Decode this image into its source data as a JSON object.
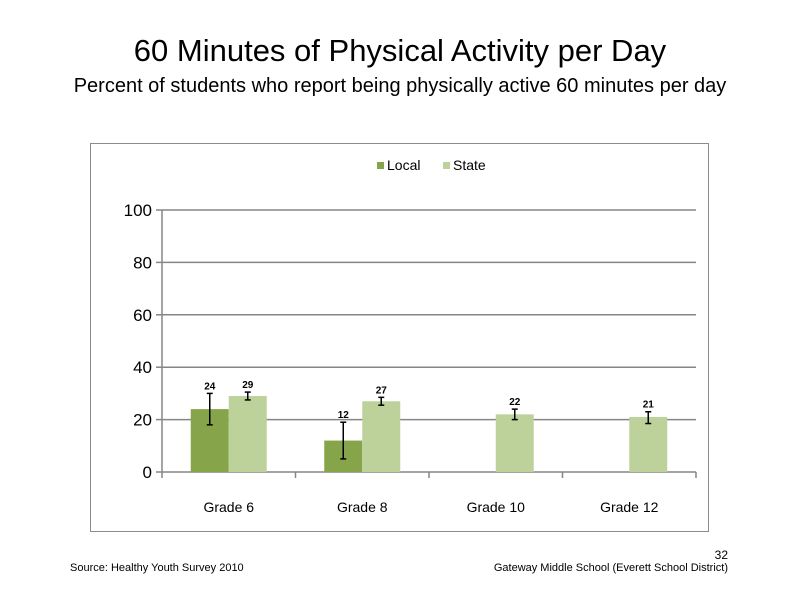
{
  "title": "60 Minutes of Physical Activity per Day",
  "subtitle": "Percent of students who report being physically active 60 minutes per day",
  "footer": {
    "source": "Source: Healthy Youth Survey 2010",
    "organization": "Gateway Middle School (Everett School District)",
    "page_number": "32"
  },
  "chart_data": {
    "type": "bar",
    "categories": [
      "Grade 6",
      "Grade 8",
      "Grade 10",
      "Grade 12"
    ],
    "ylim": [
      0,
      100
    ],
    "yticks": [
      0,
      20,
      40,
      60,
      80,
      100
    ],
    "grid": true,
    "legend_position": "top",
    "series": [
      {
        "name": "Local",
        "color": "#86a54a",
        "values": [
          24,
          12,
          null,
          null
        ],
        "error_low": [
          18,
          5,
          null,
          null
        ],
        "error_high": [
          30,
          19,
          null,
          null
        ]
      },
      {
        "name": "State",
        "color": "#bdd29b",
        "values": [
          29,
          27,
          22,
          21
        ],
        "error_low": [
          27.5,
          25.5,
          20,
          18.5
        ],
        "error_high": [
          30.5,
          28.5,
          24,
          23
        ]
      }
    ]
  }
}
